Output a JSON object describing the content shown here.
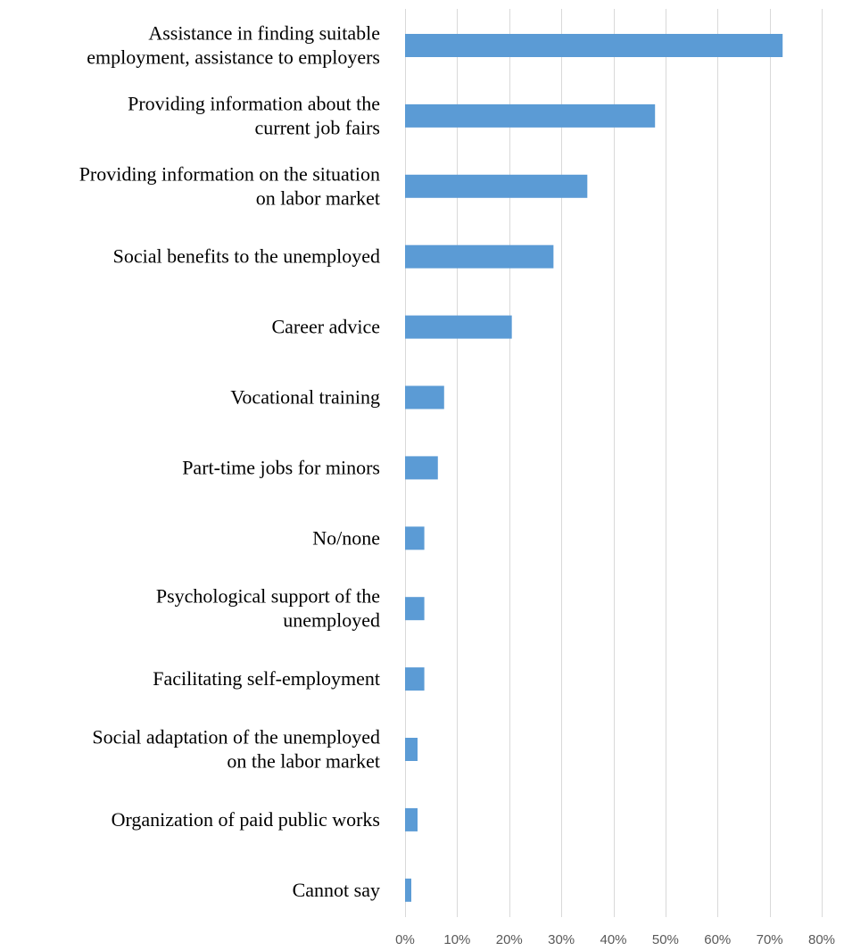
{
  "chart_data": {
    "type": "bar",
    "orientation": "horizontal",
    "categories": [
      "Assistance in finding suitable employment, assistance to employers",
      "Providing information about the current job fairs",
      "Providing information on the situation on labor market",
      "Social benefits to the unemployed",
      "Career advice",
      "Vocational training",
      "Part-time jobs for minors",
      "No/none",
      "Psychological support of the unemployed",
      "Facilitating self-employment",
      "Social adaptation of the unemployed on the labor market",
      "Organization of paid public works",
      "Cannot say"
    ],
    "category_lines": [
      [
        "Assistance in finding suitable",
        "employment, assistance to employers"
      ],
      [
        "Providing information about the",
        "current job fairs"
      ],
      [
        "Providing information on the situation",
        "on labor market"
      ],
      [
        "Social benefits to the unemployed"
      ],
      [
        "Career advice"
      ],
      [
        "Vocational training"
      ],
      [
        "Part-time jobs for minors"
      ],
      [
        "No/none"
      ],
      [
        "Psychological support of the",
        "unemployed"
      ],
      [
        "Facilitating self-employment"
      ],
      [
        "Social adaptation of the unemployed",
        "on the labor market"
      ],
      [
        "Organization of paid public works"
      ],
      [
        "Cannot say"
      ]
    ],
    "values": [
      72.5,
      48,
      35,
      28.5,
      20.5,
      7.5,
      6.3,
      3.7,
      3.7,
      3.7,
      2.4,
      2.4,
      1.2
    ],
    "xlim": [
      0,
      80
    ],
    "xticks": [
      0,
      10,
      20,
      30,
      40,
      50,
      60,
      70,
      80
    ],
    "xtick_labels": [
      "0%",
      "10%",
      "20%",
      "30%",
      "40%",
      "50%",
      "60%",
      "70%",
      "80%"
    ],
    "title": "",
    "xlabel": "",
    "ylabel": "",
    "grid": "vertical",
    "legend": "none",
    "bar_color": "#5b9bd5",
    "grid_color": "#d9d9d9"
  }
}
